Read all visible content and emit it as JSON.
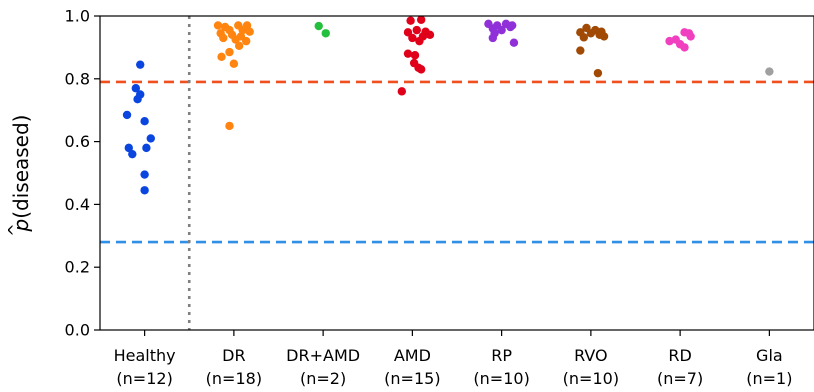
{
  "chart_data": {
    "type": "scatter",
    "title": "",
    "xlabel": "",
    "ylabel": {
      "base": "p",
      "hat": "^",
      "rest": "(diseased)"
    },
    "ylim": [
      0.0,
      1.0
    ],
    "yticks": [
      "0.0",
      "0.2",
      "0.4",
      "0.6",
      "0.8",
      "1.0"
    ],
    "grid": false,
    "categories": [
      {
        "name": "Healthy",
        "count": "(n=12)",
        "color": "#0b45e0"
      },
      {
        "name": "DR",
        "count": "(n=18)",
        "color": "#ff8410"
      },
      {
        "name": "DR+AMD",
        "count": "(n=2)",
        "color": "#22c03c"
      },
      {
        "name": "AMD",
        "count": "(n=15)",
        "color": "#e0001a"
      },
      {
        "name": "RP",
        "count": "(n=10)",
        "color": "#9030d8"
      },
      {
        "name": "RVO",
        "count": "(n=10)",
        "color": "#a04a05"
      },
      {
        "name": "RD",
        "count": "(n=7)",
        "color": "#f040c0"
      },
      {
        "name": "Gla",
        "count": "(n=1)",
        "color": "#a0a0a0"
      }
    ],
    "series": [
      {
        "category": "Healthy",
        "points": [
          {
            "j": -0.05,
            "y": 0.845
          },
          {
            "j": -0.1,
            "y": 0.77
          },
          {
            "j": -0.05,
            "y": 0.75
          },
          {
            "j": -0.08,
            "y": 0.735
          },
          {
            "j": -0.2,
            "y": 0.685
          },
          {
            "j": 0.0,
            "y": 0.665
          },
          {
            "j": 0.07,
            "y": 0.61
          },
          {
            "j": -0.18,
            "y": 0.58
          },
          {
            "j": 0.02,
            "y": 0.58
          },
          {
            "j": -0.14,
            "y": 0.56
          },
          {
            "j": 0.0,
            "y": 0.495
          },
          {
            "j": 0.0,
            "y": 0.445
          }
        ]
      },
      {
        "category": "DR",
        "points": [
          {
            "j": -0.18,
            "y": 0.97
          },
          {
            "j": -0.1,
            "y": 0.965
          },
          {
            "j": 0.05,
            "y": 0.97
          },
          {
            "j": 0.15,
            "y": 0.97
          },
          {
            "j": -0.05,
            "y": 0.955
          },
          {
            "j": 0.1,
            "y": 0.955
          },
          {
            "j": -0.15,
            "y": 0.945
          },
          {
            "j": 0.18,
            "y": 0.95
          },
          {
            "j": -0.02,
            "y": 0.94
          },
          {
            "j": 0.08,
            "y": 0.935
          },
          {
            "j": -0.12,
            "y": 0.93
          },
          {
            "j": 0.14,
            "y": 0.92
          },
          {
            "j": 0.02,
            "y": 0.925
          },
          {
            "j": 0.06,
            "y": 0.905
          },
          {
            "j": -0.05,
            "y": 0.885
          },
          {
            "j": -0.14,
            "y": 0.87
          },
          {
            "j": 0.0,
            "y": 0.848
          },
          {
            "j": -0.05,
            "y": 0.65
          }
        ]
      },
      {
        "category": "DR+AMD",
        "points": [
          {
            "j": -0.05,
            "y": 0.968
          },
          {
            "j": 0.03,
            "y": 0.945
          }
        ]
      },
      {
        "category": "AMD",
        "points": [
          {
            "j": -0.02,
            "y": 0.985
          },
          {
            "j": 0.1,
            "y": 0.988
          },
          {
            "j": 0.05,
            "y": 0.955
          },
          {
            "j": 0.15,
            "y": 0.95
          },
          {
            "j": -0.05,
            "y": 0.948
          },
          {
            "j": 0.2,
            "y": 0.94
          },
          {
            "j": 0.12,
            "y": 0.935
          },
          {
            "j": 0.0,
            "y": 0.93
          },
          {
            "j": 0.08,
            "y": 0.92
          },
          {
            "j": -0.05,
            "y": 0.88
          },
          {
            "j": 0.03,
            "y": 0.875
          },
          {
            "j": 0.02,
            "y": 0.85
          },
          {
            "j": 0.07,
            "y": 0.835
          },
          {
            "j": 0.1,
            "y": 0.83
          },
          {
            "j": -0.12,
            "y": 0.76
          }
        ]
      },
      {
        "category": "RP",
        "points": [
          {
            "j": -0.15,
            "y": 0.975
          },
          {
            "j": -0.05,
            "y": 0.97
          },
          {
            "j": 0.05,
            "y": 0.975
          },
          {
            "j": 0.12,
            "y": 0.97
          },
          {
            "j": -0.1,
            "y": 0.96
          },
          {
            "j": 0.0,
            "y": 0.955
          },
          {
            "j": 0.1,
            "y": 0.965
          },
          {
            "j": -0.08,
            "y": 0.945
          },
          {
            "j": -0.1,
            "y": 0.93
          },
          {
            "j": 0.14,
            "y": 0.915
          }
        ]
      },
      {
        "category": "RVO",
        "points": [
          {
            "j": -0.05,
            "y": 0.962
          },
          {
            "j": 0.05,
            "y": 0.955
          },
          {
            "j": -0.12,
            "y": 0.948
          },
          {
            "j": 0.12,
            "y": 0.95
          },
          {
            "j": 0.0,
            "y": 0.945
          },
          {
            "j": 0.1,
            "y": 0.94
          },
          {
            "j": -0.08,
            "y": 0.932
          },
          {
            "j": 0.15,
            "y": 0.935
          },
          {
            "j": -0.12,
            "y": 0.89
          },
          {
            "j": 0.08,
            "y": 0.818
          }
        ]
      },
      {
        "category": "RD",
        "points": [
          {
            "j": 0.05,
            "y": 0.948
          },
          {
            "j": 0.1,
            "y": 0.945
          },
          {
            "j": 0.12,
            "y": 0.935
          },
          {
            "j": -0.05,
            "y": 0.925
          },
          {
            "j": -0.12,
            "y": 0.92
          },
          {
            "j": 0.0,
            "y": 0.91
          },
          {
            "j": 0.05,
            "y": 0.9
          }
        ]
      },
      {
        "category": "Gla",
        "points": [
          {
            "j": 0.0,
            "y": 0.823
          }
        ]
      }
    ],
    "reference_lines": [
      {
        "orientation": "horizontal",
        "y": 0.79,
        "style": "dashed",
        "color": "#f05020"
      },
      {
        "orientation": "horizontal",
        "y": 0.28,
        "style": "dashed",
        "color": "#3090e8"
      },
      {
        "orientation": "vertical",
        "between": [
          "Healthy",
          "DR"
        ],
        "style": "dotted",
        "color": "#808080"
      }
    ]
  }
}
